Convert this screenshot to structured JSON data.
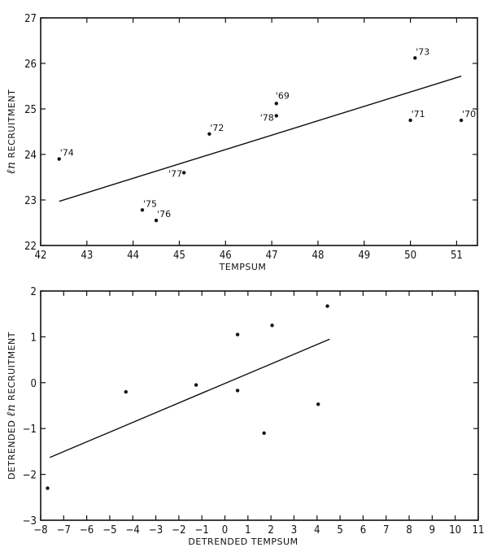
{
  "chart_data": [
    {
      "type": "scatter",
      "title": "",
      "xlabel": "TEMPSUM",
      "ylabel": "ln RECRUITMENT",
      "ylabel_prefix": "ℓn",
      "ylabel_text": "RECRUITMENT",
      "xlim": [
        42,
        51.45
      ],
      "ylim": [
        22,
        27
      ],
      "xticks": [
        42,
        43,
        44,
        45,
        46,
        47,
        48,
        49,
        50,
        51
      ],
      "yticks": [
        22,
        23,
        24,
        25,
        26,
        27
      ],
      "grid": false,
      "points": [
        {
          "label": "'74",
          "x": 42.4,
          "y": 23.9
        },
        {
          "label": "'75",
          "x": 44.2,
          "y": 22.78
        },
        {
          "label": "'76",
          "x": 44.5,
          "y": 22.55
        },
        {
          "label": "'77",
          "x": 45.1,
          "y": 23.6
        },
        {
          "label": "'72",
          "x": 45.65,
          "y": 24.45
        },
        {
          "label": "'69",
          "x": 47.1,
          "y": 25.12
        },
        {
          "label": "'78",
          "x": 47.1,
          "y": 24.85
        },
        {
          "label": "'71",
          "x": 50.0,
          "y": 24.75
        },
        {
          "label": "'73",
          "x": 50.1,
          "y": 26.12
        },
        {
          "label": "'70",
          "x": 51.1,
          "y": 24.75
        }
      ],
      "fit_line": {
        "x": [
          42.4,
          51.1
        ],
        "y": [
          22.97,
          25.72
        ]
      }
    },
    {
      "type": "scatter",
      "title": "",
      "xlabel": "DETRENDED TEMPSUM",
      "ylabel": "DETRENDED ln RECRUITMENT",
      "ylabel_before": "DETRENDED",
      "ylabel_prefix": "ℓn",
      "ylabel_text": "RECRUITMENT",
      "xlim": [
        -8,
        11
      ],
      "ylim": [
        -3,
        2
      ],
      "xticks": [
        -8,
        -7,
        -6,
        -5,
        -4,
        -3,
        -2,
        -1,
        0,
        1,
        2,
        3,
        4,
        5,
        6,
        7,
        8,
        9,
        10,
        11
      ],
      "yticks": [
        -3,
        -2,
        -1,
        0,
        1,
        2
      ],
      "grid": false,
      "points": [
        {
          "x": -7.7,
          "y": -2.3
        },
        {
          "x": -4.3,
          "y": -0.2
        },
        {
          "x": -1.25,
          "y": -0.05
        },
        {
          "x": 0.55,
          "y": 1.05
        },
        {
          "x": 0.55,
          "y": -0.17
        },
        {
          "x": 1.7,
          "y": -1.1
        },
        {
          "x": 2.05,
          "y": 1.25
        },
        {
          "x": 4.05,
          "y": -0.47
        },
        {
          "x": 4.45,
          "y": 1.67
        }
      ],
      "fit_line": {
        "x": [
          -7.6,
          4.55
        ],
        "y": [
          -1.63,
          0.95
        ]
      }
    }
  ]
}
